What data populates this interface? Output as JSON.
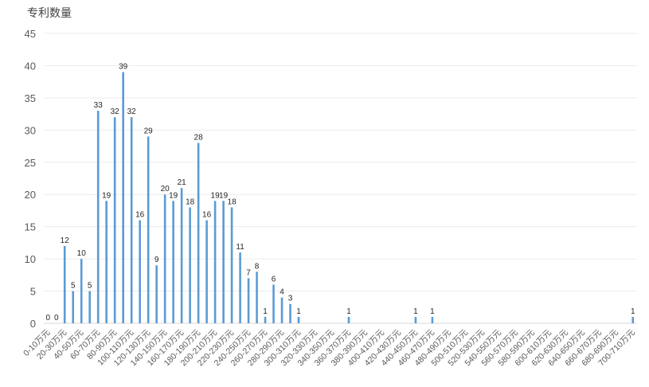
{
  "chart_data": {
    "type": "bar",
    "ylabel": "专利数量",
    "xlabel": "",
    "title": "",
    "ylim": [
      0,
      45
    ],
    "yticks": [
      0,
      5,
      10,
      15,
      20,
      25,
      30,
      35,
      40,
      45
    ],
    "grid": true,
    "bar_color": "#5b9bd5",
    "categories": [
      "0-10万元",
      "10-20万元",
      "20-30万元",
      "30-40万元",
      "40-50万元",
      "50-60万元",
      "60-70万元",
      "70-80万元",
      "80-90万元",
      "90-100万元",
      "100-110万元",
      "110-120万元",
      "120-130万元",
      "130-140万元",
      "140-150万元",
      "150-160万元",
      "160-170万元",
      "170-180万元",
      "180-190万元",
      "190-200万元",
      "200-210万元",
      "210-220万元",
      "220-230万元",
      "230-240万元",
      "240-250万元",
      "250-260万元",
      "260-270万元",
      "270-280万元",
      "280-290万元",
      "290-300万元",
      "300-310万元",
      "310-320万元",
      "320-330万元",
      "330-340万元",
      "340-350万元",
      "350-360万元",
      "360-370万元",
      "370-380万元",
      "380-390万元",
      "390-400万元",
      "400-410万元",
      "410-420万元",
      "420-430万元",
      "430-440万元",
      "440-450万元",
      "450-460万元",
      "460-470万元",
      "470-480万元",
      "480-490万元",
      "490-500万元",
      "500-510万元",
      "510-520万元",
      "520-530万元",
      "530-540万元",
      "540-550万元",
      "550-560万元",
      "560-570万元",
      "570-580万元",
      "580-590万元",
      "590-600万元",
      "600-610万元",
      "610-620万元",
      "620-630万元",
      "630-640万元",
      "640-650万元",
      "650-660万元",
      "660-670万元",
      "670-680万元",
      "680-690万元",
      "690-700万元",
      "700-710万元"
    ],
    "values": [
      0,
      0,
      12,
      5,
      10,
      5,
      33,
      19,
      32,
      39,
      32,
      16,
      29,
      9,
      20,
      19,
      21,
      18,
      28,
      16,
      19,
      19,
      18,
      11,
      7,
      8,
      1,
      6,
      4,
      3,
      1,
      0,
      0,
      0,
      0,
      0,
      1,
      0,
      0,
      0,
      0,
      0,
      0,
      0,
      1,
      0,
      1,
      0,
      0,
      0,
      0,
      0,
      0,
      0,
      0,
      0,
      0,
      0,
      0,
      0,
      0,
      0,
      0,
      0,
      0,
      0,
      0,
      0,
      0,
      0,
      1
    ],
    "data_labels": [
      "0",
      "0",
      "12",
      "5",
      "10",
      "5",
      "33",
      "19",
      "32",
      "39",
      "32",
      "16",
      "29",
      "9",
      "20",
      "19",
      "21",
      "18",
      "28",
      "16",
      "19",
      "19",
      "18",
      "11",
      "7",
      "8",
      "1",
      "6",
      "4",
      "3",
      "1",
      "",
      "",
      "",
      "",
      "",
      "1",
      "",
      "",
      "",
      "",
      "",
      "",
      "",
      "1",
      "",
      "1",
      "",
      "",
      "",
      "",
      "",
      "",
      "",
      "",
      "",
      "",
      "",
      "",
      "",
      "",
      "",
      "",
      "",
      "",
      "",
      "",
      "",
      "",
      "",
      "1"
    ]
  }
}
